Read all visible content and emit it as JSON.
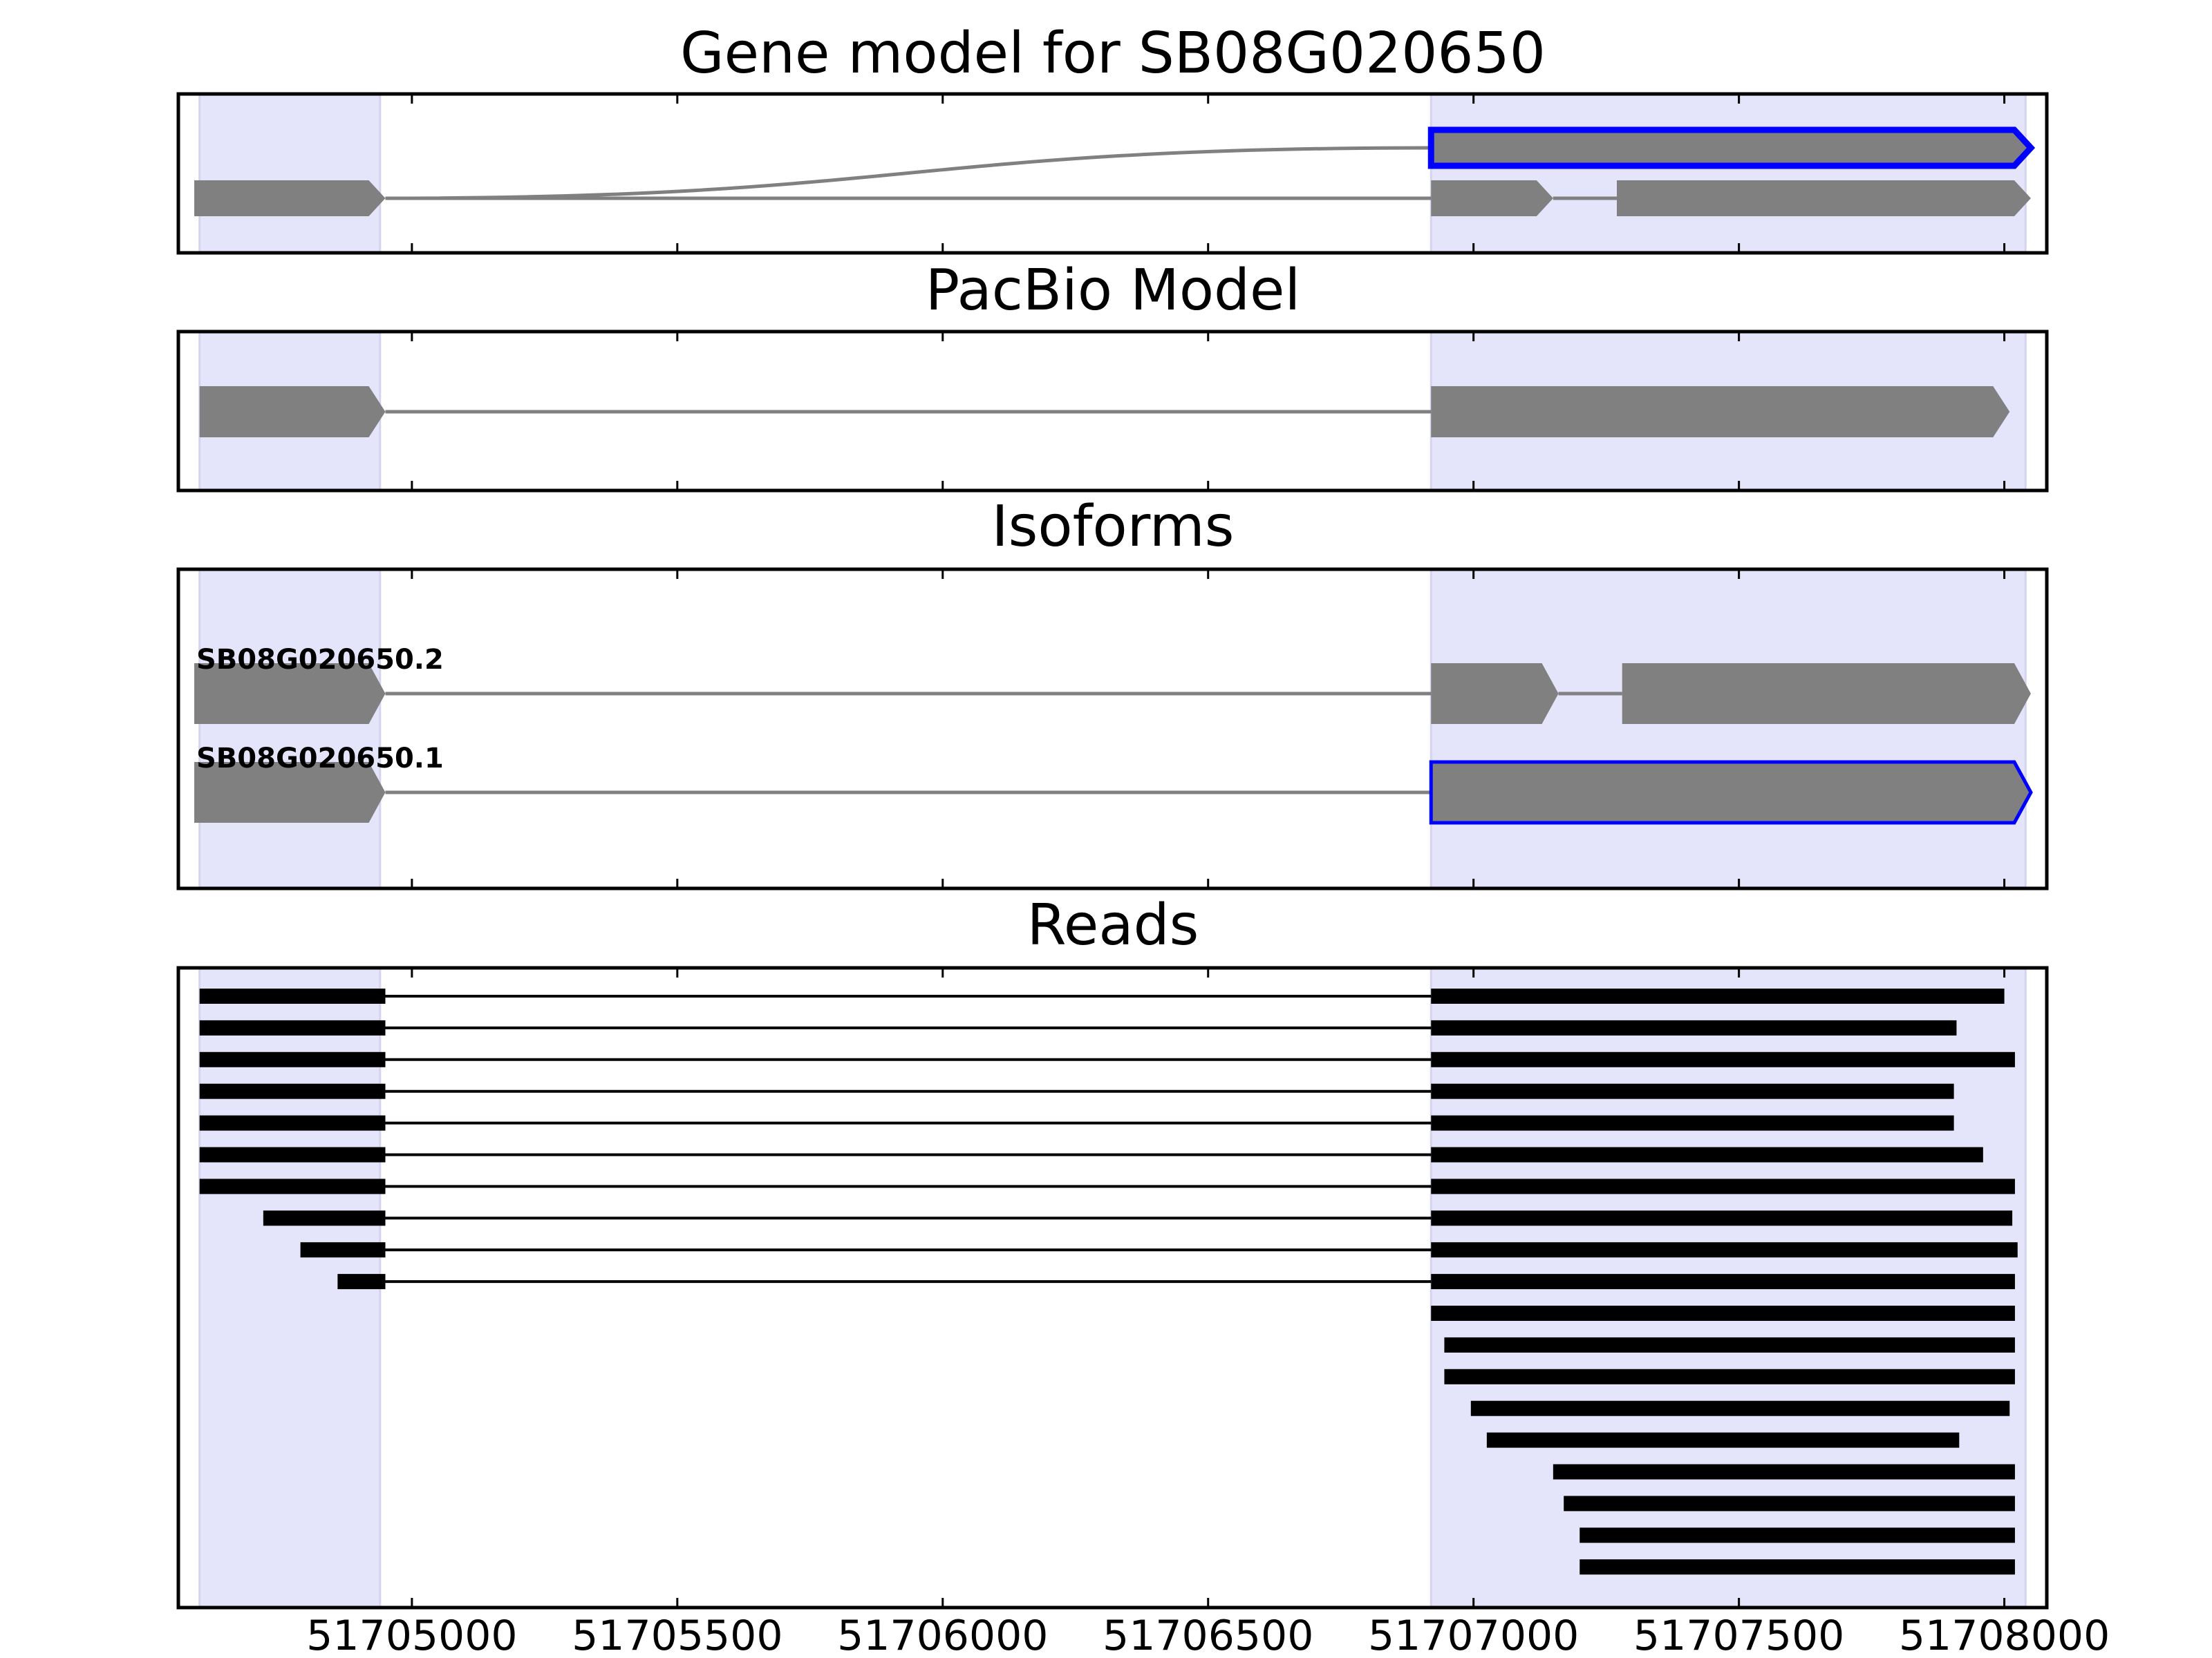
{
  "chart_data": [
    {
      "type": "gene_model",
      "title": "Gene model for SB08G020650",
      "exon_regions": [
        [
          51704600,
          51704940
        ],
        [
          51706920,
          51708040
        ]
      ],
      "colors": {
        "feature": "#808080",
        "highlight": "#0000ff",
        "region": "#e4e4fa",
        "line": "#808080"
      },
      "tracks": [
        {
          "name": "",
          "highlight": true,
          "exons": [
            [
              51706920,
              51708050
            ]
          ],
          "junction_from": 51704950,
          "edge_style": "curve"
        },
        {
          "name": "",
          "highlight": false,
          "exons": [
            [
              51704590,
              51704950
            ],
            [
              51706920,
              51707150
            ],
            [
              51707270,
              51708050
            ]
          ],
          "edge_style": "line"
        }
      ]
    },
    {
      "type": "gene_model",
      "title": "PacBio Model",
      "exon_regions": [
        [
          51704600,
          51704940
        ],
        [
          51706920,
          51708040
        ]
      ],
      "tracks": [
        {
          "name": "",
          "highlight": false,
          "exons": [
            [
              51704600,
              51704950
            ],
            [
              51706920,
              51708010
            ]
          ]
        }
      ]
    },
    {
      "type": "gene_model",
      "title": "Isoforms",
      "exon_regions": [
        [
          51704600,
          51704940
        ],
        [
          51706920,
          51708040
        ]
      ],
      "tracks": [
        {
          "name": "SB08G020650.2",
          "highlight": false,
          "exons": [
            [
              51704590,
              51704950
            ],
            [
              51706920,
              51707160
            ],
            [
              51707280,
              51708050
            ]
          ]
        },
        {
          "name": "SB08G020650.1",
          "highlight": false,
          "exons": [
            [
              51704590,
              51704950
            ],
            [
              51706920,
              51708050
            ]
          ],
          "highlight_exons": [
            [
              51706920,
              51708050
            ]
          ]
        }
      ]
    },
    {
      "type": "reads",
      "title": "Reads",
      "exon_regions": [
        [
          51704600,
          51704940
        ],
        [
          51706920,
          51708040
        ]
      ],
      "reads": [
        [
          [
            51704600,
            51704950
          ],
          [
            51706920,
            51708000
          ]
        ],
        [
          [
            51704600,
            51704950
          ],
          [
            51706920,
            51707910
          ]
        ],
        [
          [
            51704600,
            51704950
          ],
          [
            51706920,
            51708020
          ]
        ],
        [
          [
            51704600,
            51704950
          ],
          [
            51706920,
            51707905
          ]
        ],
        [
          [
            51704600,
            51704950
          ],
          [
            51706920,
            51707905
          ]
        ],
        [
          [
            51704600,
            51704950
          ],
          [
            51706920,
            51707960
          ]
        ],
        [
          [
            51704600,
            51704950
          ],
          [
            51706920,
            51708020
          ]
        ],
        [
          [
            51704720,
            51704950
          ],
          [
            51706920,
            51708015
          ]
        ],
        [
          [
            51704790,
            51704950
          ],
          [
            51706920,
            51708025
          ]
        ],
        [
          [
            51704860,
            51704950
          ],
          [
            51706920,
            51708020
          ]
        ],
        [
          [
            51706920,
            51708020
          ]
        ],
        [
          [
            51706945,
            51708020
          ]
        ],
        [
          [
            51706945,
            51708020
          ]
        ],
        [
          [
            51706995,
            51708010
          ]
        ],
        [
          [
            51707025,
            51707915
          ]
        ],
        [
          [
            51707150,
            51708020
          ]
        ],
        [
          [
            51707170,
            51708020
          ]
        ],
        [
          [
            51707200,
            51708020
          ]
        ],
        [
          [
            51707200,
            51708020
          ]
        ]
      ]
    }
  ],
  "x_axis": {
    "xlim": [
      51704560,
      51708080
    ],
    "ticks": [
      51705000,
      51705500,
      51706000,
      51706500,
      51707000,
      51707500,
      51708000
    ],
    "tick_labels": [
      "51705000",
      "51705500",
      "51706000",
      "51706500",
      "51707000",
      "51707500",
      "51708000"
    ]
  }
}
